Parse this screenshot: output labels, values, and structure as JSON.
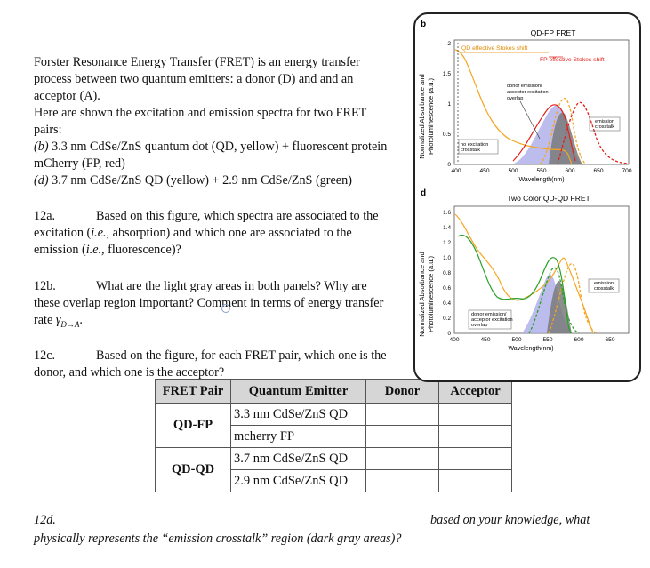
{
  "intro": {
    "line1": "Forster Resonance Energy Transfer (FRET) is an energy transfer",
    "line2": "process between two quantum emitters: a donor (D) and and an",
    "line3": "acceptor (A).",
    "line4": "Here are shown the excitation and emission spectra for two FRET",
    "line5": "pairs:",
    "line6": "(b) 3.3 nm CdSe/ZnS quantum dot (QD, yellow) + fluorescent protein",
    "line7": "mCherry (FP, red)",
    "line8": "(d) 3.7 nm CdSe/ZnS QD (yellow) + 2.9 nm CdSe/ZnS (green)"
  },
  "q12a": {
    "num": "12a.",
    "line1": "Based on this figure, which spectra are associated to the",
    "line2": "excitation (i.e., absorption) and which one are associated to the",
    "line3": "emission (i.e., fluorescence)?"
  },
  "q12b": {
    "num": "12b.",
    "line1": "What are the light gray areas in both panels? Why are",
    "line2": "these overlap region important? Comment in terms of energy transfer",
    "line3": "rate γD→A."
  },
  "q12c": {
    "num": "12c.",
    "line1": "Based on the figure, for each FRET pair, which one is the",
    "line2": "donor, and which one is the acceptor?"
  },
  "table": {
    "headers": [
      "FRET Pair",
      "Quantum Emitter",
      "Donor",
      "Acceptor"
    ],
    "pairs": [
      {
        "name": "QD-FP",
        "emitters": [
          "3.3 nm CdSe/ZnS QD",
          "mcherry FP"
        ]
      },
      {
        "name": "QD-QD",
        "emitters": [
          "3.7 nm CdSe/ZnS QD",
          "2.9 nm CdSe/ZnS QD"
        ]
      }
    ]
  },
  "q12d": {
    "num": "12d.",
    "line1_right": "based on your knowledge, what",
    "line2": "physically represents the “emission crosstalk” region (dark gray areas)?"
  },
  "figure": {
    "panel_b": {
      "label": "b",
      "title": "QD-FP FRET",
      "ylabel": "Normalized Absorbance and Photoluminescence (a.u.)",
      "xlabel": "Wavelength(nm)",
      "xticks": [
        "400",
        "450",
        "500",
        "550",
        "600",
        "650",
        "700"
      ],
      "yticks": [
        "0",
        "0.5",
        "1",
        "1.5",
        "2"
      ],
      "ann_qd_stokes": "QD effective Stokes shift",
      "ann_fp_stokes": "FP effective Stokes shift",
      "ann_overlap": "donor emission/ acceptor excitation overlap",
      "ann_overlap_lines": [
        "donor emission/",
        "acceptor excitation",
        "overlap"
      ],
      "ann_no_crosstalk_lines": [
        "no excitation",
        "crosstalk"
      ],
      "ann_emission_crosstalk_lines": [
        "emission",
        "crosstalk"
      ]
    },
    "panel_d": {
      "label": "d",
      "title": "Two Color QD-QD FRET",
      "ylabel": "Normalized Absorbance and Photoluminescence (a.u.)",
      "xlabel": "Wavelength(nm)",
      "xticks": [
        "400",
        "450",
        "500",
        "550",
        "600",
        "650"
      ],
      "yticks": [
        "0",
        "0.2",
        "0.4",
        "0.6",
        "0.8",
        "1.0",
        "1.2",
        "1.4",
        "1.6"
      ],
      "ann_overlap_lines": [
        "donor emission/",
        "acceptor excitation",
        "overlap"
      ],
      "ann_emission_crosstalk_lines": [
        "emission",
        "crosstalk"
      ]
    },
    "colors": {
      "qd_yellow": "#f5a623",
      "fp_red": "#e0201b",
      "qd_green": "#2aa02a",
      "overlap_fill": "#a9a9e6",
      "crosstalk_fill": "#777777"
    }
  }
}
